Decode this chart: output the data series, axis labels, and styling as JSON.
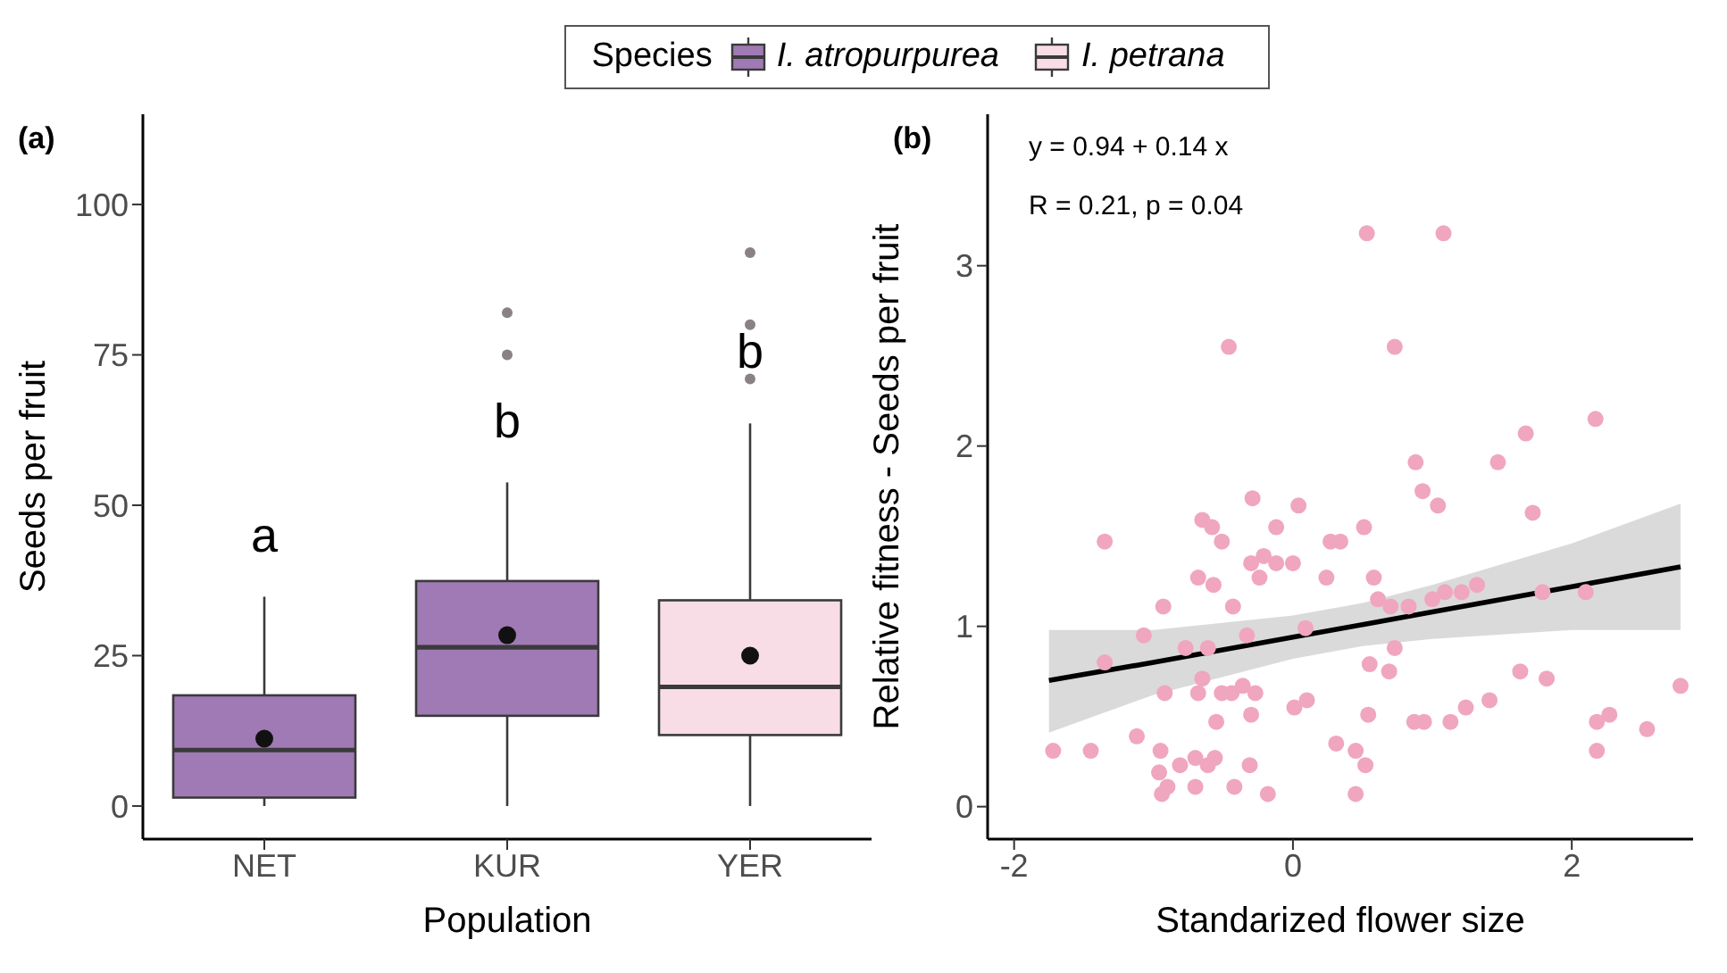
{
  "chart_data": [
    {
      "type": "box",
      "title": "(a)",
      "xlabel": "Population",
      "ylabel": "Seeds per fruit",
      "categories": [
        "NET",
        "KUR",
        "YER"
      ],
      "ylim": [
        -5.5,
        115
      ],
      "yticks": [
        0,
        25,
        50,
        75,
        100
      ],
      "grid": false,
      "legend": "top",
      "legend_title": "Species",
      "series": [
        {
          "name": "I. atropurpurea",
          "color": "#a07ab4",
          "boxes": [
            {
              "low": 0,
              "q1": 1.4,
              "median": 9.3,
              "q3": 18.4,
              "high": 34.8,
              "mean": 11.2
            },
            {
              "low": 0,
              "q1": 15,
              "median": 26.4,
              "q3": 37.4,
              "high": 53.8,
              "mean": 28.4,
              "outliers": [
                75,
                82
              ]
            },
            null
          ]
        },
        {
          "name": "I. petrana",
          "color": "#f9dde6",
          "boxes": [
            null,
            null,
            {
              "low": 0,
              "q1": 11.8,
              "median": 19.8,
              "q3": 34.2,
              "high": 63.6,
              "mean": 25,
              "outliers": [
                71,
                80,
                92
              ]
            }
          ]
        }
      ],
      "annotations": [
        "a",
        "b",
        "b"
      ]
    },
    {
      "type": "scatter",
      "title": "(b)",
      "xlabel": "Standarized flower size",
      "ylabel": "Relative fitness - Seeds per fruit",
      "xlim": [
        -2.19,
        2.87
      ],
      "xticks": [
        -2,
        0,
        2
      ],
      "ylim": [
        -0.18,
        3.84
      ],
      "yticks": [
        0,
        1,
        2,
        3
      ],
      "grid": false,
      "marker": "circle",
      "series": [
        {
          "color": "#f0a6bf",
          "x": [
            0.88,
            1.47,
            0.93,
            1.04,
            1.72,
            -0.29,
            0.04,
            -1.35,
            -0.65,
            -0.58,
            -0.51,
            -0.12,
            0.51,
            0.27,
            0.34,
            -0.3,
            -0.21,
            -0.12,
            0.0,
            -0.68,
            -0.57,
            -0.24,
            0.24,
            0.58,
            -0.93,
            -0.43,
            0.61,
            0.7,
            0.83,
            1.0,
            1.09,
            1.21,
            1.32,
            1.79,
            2.1,
            -1.07,
            -0.33,
            0.09,
            -1.35,
            -0.77,
            -0.61,
            0.73,
            0.55,
            0.69,
            -0.65,
            1.63,
            1.82,
            2.78,
            -0.92,
            -0.68,
            -0.51,
            -0.44,
            -0.36,
            -0.27,
            0.1,
            0.01,
            -0.3,
            0.54,
            1.41,
            1.24,
            -0.55,
            0.87,
            0.94,
            1.13,
            2.27,
            2.18,
            2.54,
            -1.12,
            -1.72,
            -1.45,
            -0.95,
            0.31,
            0.45,
            2.18,
            -0.81,
            -0.7,
            -0.61,
            -0.56,
            -0.31,
            0.52,
            -0.96,
            -0.9,
            -0.94,
            -0.7,
            -0.42,
            -0.18,
            0.45,
            0.53,
            1.08,
            -0.46,
            0.73,
            2.17,
            1.67
          ],
          "values": [
            1.91,
            1.91,
            1.75,
            1.67,
            1.63,
            1.71,
            1.67,
            1.47,
            1.59,
            1.55,
            1.47,
            1.55,
            1.55,
            1.47,
            1.47,
            1.35,
            1.39,
            1.35,
            1.35,
            1.27,
            1.23,
            1.27,
            1.27,
            1.27,
            1.11,
            1.11,
            1.15,
            1.11,
            1.11,
            1.15,
            1.19,
            1.19,
            1.23,
            1.19,
            1.19,
            0.95,
            0.95,
            0.99,
            0.8,
            0.88,
            0.88,
            0.88,
            0.79,
            0.75,
            0.71,
            0.75,
            0.71,
            0.67,
            0.63,
            0.63,
            0.63,
            0.63,
            0.67,
            0.63,
            0.59,
            0.55,
            0.51,
            0.51,
            0.59,
            0.55,
            0.47,
            0.47,
            0.47,
            0.47,
            0.51,
            0.47,
            0.43,
            0.39,
            0.31,
            0.31,
            0.31,
            0.35,
            0.31,
            0.31,
            0.23,
            0.27,
            0.23,
            0.27,
            0.23,
            0.23,
            0.19,
            0.11,
            0.07,
            0.11,
            0.11,
            0.07,
            0.07,
            3.18,
            3.18,
            2.55,
            2.55,
            2.15,
            2.07
          ]
        },
        {
          "type": "line",
          "color": "#000000",
          "x": [
            -1.75,
            -1,
            0,
            0.5,
            1,
            2,
            2.78
          ],
          "marker": "none",
          "values": [
            0.7,
            0.8,
            0.94,
            1.01,
            1.08,
            1.22,
            1.33
          ],
          "lower": [
            0.41,
            0.62,
            0.82,
            0.89,
            0.93,
            0.98,
            0.98
          ],
          "upper": [
            0.98,
            0.98,
            1.06,
            1.13,
            1.23,
            1.46,
            1.68
          ]
        }
      ],
      "annotations": [
        "y = 0.94 + 0.14 x",
        "R = 0.21, p = 0.04"
      ]
    }
  ]
}
